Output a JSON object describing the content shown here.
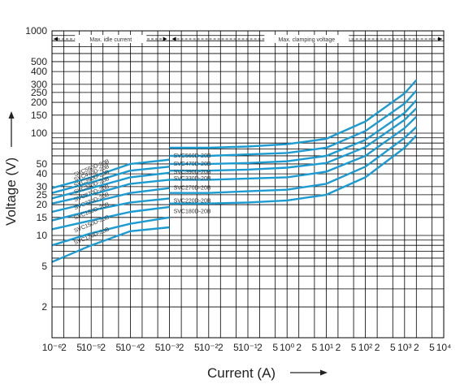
{
  "chart_data": {
    "type": "line",
    "xlabel": "Current (A)",
    "ylabel": "Voltage (V)",
    "x_scale": "log",
    "y_scale": "log",
    "xlim": [
      1e-06,
      10000
    ],
    "ylim": [
      1,
      1000
    ],
    "x_tick_labels": [
      "10⁻⁶",
      "2",
      "5",
      "10⁻⁵",
      "2",
      "5",
      "10⁻⁴",
      "2",
      "5",
      "10⁻³",
      "2",
      "5",
      "10⁻²",
      "2",
      "5",
      "10⁻¹",
      "2",
      "5",
      "10⁰",
      "2",
      "5",
      "10¹",
      "2",
      "5",
      "10²",
      "2",
      "5",
      "10³",
      "2",
      "5",
      "10⁴"
    ],
    "y_tick_labels": [
      "1000",
      "500",
      "400",
      "300",
      "250",
      "200",
      "150",
      "100",
      "50",
      "40",
      "30",
      "25",
      "20",
      "15",
      "10",
      "5",
      "2"
    ],
    "region_labels": [
      "Max. idle current",
      "Max. clamping voltage"
    ],
    "series": [
      {
        "name": "SVC560D-20B",
        "idle": [
          [
            1e-06,
            29
          ],
          [
            1e-05,
            37
          ],
          [
            0.0001,
            50
          ],
          [
            0.001,
            55
          ]
        ],
        "clamp": [
          [
            0.001,
            72
          ],
          [
            0.01,
            72
          ],
          [
            0.1,
            74
          ],
          [
            1,
            78
          ],
          [
            10,
            88
          ],
          [
            100,
            130
          ],
          [
            1000,
            245
          ],
          [
            2000,
            330
          ]
        ]
      },
      {
        "name": "SVC470D-20B",
        "idle": [
          [
            1e-06,
            26
          ],
          [
            1e-05,
            33
          ],
          [
            0.0001,
            43
          ],
          [
            0.001,
            47
          ]
        ],
        "clamp": [
          [
            0.001,
            60
          ],
          [
            0.01,
            60
          ],
          [
            0.1,
            62
          ],
          [
            1,
            64
          ],
          [
            10,
            72
          ],
          [
            100,
            105
          ],
          [
            1000,
            195
          ],
          [
            2000,
            260
          ]
        ]
      },
      {
        "name": "SVC390D-20B",
        "idle": [
          [
            1e-06,
            23
          ],
          [
            1e-05,
            29
          ],
          [
            0.0001,
            37
          ],
          [
            0.001,
            41
          ]
        ],
        "clamp": [
          [
            0.001,
            50
          ],
          [
            0.01,
            50
          ],
          [
            0.1,
            51
          ],
          [
            1,
            53
          ],
          [
            10,
            60
          ],
          [
            100,
            86
          ],
          [
            1000,
            158
          ],
          [
            2000,
            210
          ]
        ]
      },
      {
        "name": "SVC330D-20B",
        "idle": [
          [
            1e-06,
            20.5
          ],
          [
            1e-05,
            25
          ],
          [
            0.0001,
            32
          ],
          [
            0.001,
            35
          ]
        ],
        "clamp": [
          [
            0.001,
            43
          ],
          [
            0.01,
            43
          ],
          [
            0.1,
            44
          ],
          [
            1,
            46
          ],
          [
            10,
            51
          ],
          [
            100,
            73
          ],
          [
            1000,
            135
          ],
          [
            2000,
            175
          ]
        ]
      },
      {
        "name": "SVC270D-20B",
        "idle": [
          [
            1e-06,
            17
          ],
          [
            1e-05,
            21
          ],
          [
            0.0001,
            26
          ],
          [
            0.001,
            29
          ]
        ],
        "clamp": [
          [
            0.001,
            35
          ],
          [
            0.01,
            35
          ],
          [
            0.1,
            36
          ],
          [
            1,
            37
          ],
          [
            10,
            42
          ],
          [
            100,
            60
          ],
          [
            1000,
            112
          ],
          [
            2000,
            145
          ]
        ]
      },
      {
        "name": "SVC220D-20B",
        "idle": [
          [
            1e-06,
            14
          ],
          [
            1e-05,
            17.5
          ],
          [
            0.0001,
            21
          ],
          [
            0.001,
            23
          ]
        ],
        "clamp": [
          [
            0.001,
            26
          ],
          [
            0.01,
            26
          ],
          [
            0.1,
            27
          ],
          [
            1,
            28
          ],
          [
            10,
            32
          ],
          [
            100,
            47
          ],
          [
            1000,
            90
          ],
          [
            2000,
            115
          ]
        ]
      },
      {
        "name": "SVC180D-20B",
        "idle": [
          [
            1e-06,
            11.5
          ],
          [
            1e-05,
            14
          ],
          [
            0.0001,
            17
          ],
          [
            0.001,
            19
          ]
        ],
        "clamp": [
          [
            0.001,
            20.5
          ],
          [
            0.01,
            20.5
          ],
          [
            0.1,
            21
          ],
          [
            1,
            22
          ],
          [
            10,
            25
          ],
          [
            100,
            37
          ],
          [
            1000,
            72
          ],
          [
            2000,
            95
          ]
        ]
      },
      {
        "name": "SVC150D-20B",
        "idle": [
          [
            1e-06,
            8
          ],
          [
            1e-05,
            10.5
          ],
          [
            0.0001,
            13
          ],
          [
            0.001,
            15
          ]
        ],
        "clamp": []
      },
      {
        "name": "SVC120D-20B",
        "idle": [
          [
            1e-06,
            5.5
          ],
          [
            1e-05,
            8
          ],
          [
            0.0001,
            11
          ],
          [
            0.001,
            12
          ]
        ],
        "clamp": []
      }
    ],
    "grid": true,
    "line_color": "#1b9bd1"
  }
}
